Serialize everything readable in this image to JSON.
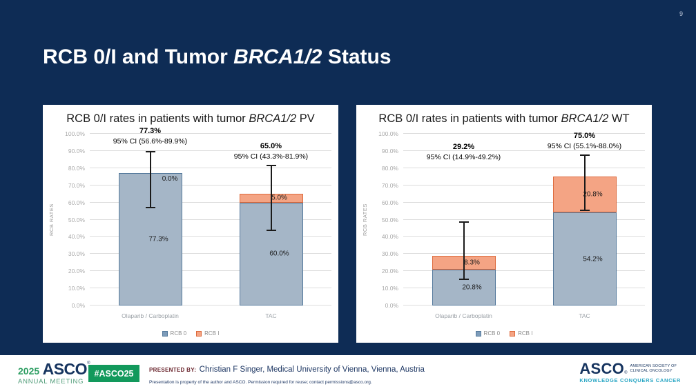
{
  "slide": {
    "page_number": "9",
    "title": {
      "prefix": "RCB 0/I and Tumor ",
      "italic": "BRCA1/2",
      "suffix": " Status"
    }
  },
  "charts": [
    {
      "title": {
        "prefix": "RCB 0/I rates in patients with tumor ",
        "italic": "BRCA1/2",
        "suffix": " PV"
      },
      "y_label": "RCB RATES",
      "y_ticks": [
        "100.0%",
        "90.0%",
        "80.0%",
        "70.0%",
        "60.0%",
        "50.0%",
        "40.0%",
        "30.0%",
        "20.0%",
        "10.0%",
        "0.0%"
      ],
      "legend": [
        {
          "label": "RCB 0"
        },
        {
          "label": "RCB I"
        }
      ],
      "bars": [
        {
          "category": "Olaparib / Carboplatin",
          "rcb0": 77.3,
          "rcb0_label": "77.3%",
          "rcb1": 0,
          "rcb1_label": "0.0%",
          "value_label": "77.3%",
          "ci_label": "95% CI (56.6%-89.9%)",
          "ci_low": 56.6,
          "ci_high": 89.9,
          "ann_bottom": 93
        },
        {
          "category": "TAC",
          "rcb0": 60.0,
          "rcb0_label": "60.0%",
          "rcb1": 5.0,
          "rcb1_label": "5.0%",
          "value_label": "65.0%",
          "ci_label": "95% CI (43.3%-81.9%)",
          "ci_low": 43.3,
          "ci_high": 81.9,
          "ann_bottom": 84.5
        }
      ]
    },
    {
      "title": {
        "prefix": "RCB 0/I rates in patients with tumor ",
        "italic": "BRCA1/2",
        "suffix": " WT"
      },
      "y_label": "RCB RATES",
      "y_ticks": [
        "100.0%",
        "90.0%",
        "80.0%",
        "70.0%",
        "60.0%",
        "50.0%",
        "40.0%",
        "30.0%",
        "20.0%",
        "10.0%",
        "0.0%"
      ],
      "legend": [
        {
          "label": "RCB 0"
        },
        {
          "label": "RCB I"
        }
      ],
      "bars": [
        {
          "category": "Olaparib / Carboplatin",
          "rcb0": 20.8,
          "rcb0_label": "20.8%",
          "rcb1": 8.3,
          "rcb1_label": "8.3%",
          "value_label": "29.2%",
          "ci_label": "95% CI (14.9%-49.2%)",
          "ci_low": 14.9,
          "ci_high": 49.2,
          "ann_bottom": 84
        },
        {
          "category": "TAC",
          "rcb0": 54.2,
          "rcb0_label": "54.2%",
          "rcb1": 20.8,
          "rcb1_label": "20.8%",
          "value_label": "75.0%",
          "ci_label": "95% CI (55.1%-88.0%)",
          "ci_low": 55.1,
          "ci_high": 88.0,
          "ann_bottom": 90.5
        }
      ]
    }
  ],
  "footer": {
    "meeting_logo": {
      "year": "2025",
      "org": "ASCO",
      "reg": "®",
      "sub": "ANNUAL MEETING"
    },
    "hashtag": "#ASCO25",
    "presented_by_label": "PRESENTED BY:",
    "presenter": "Christian F Singer, Medical University of Vienna, Vienna, Austria",
    "disclaimer": "Presentation is property of the author and ASCO. Permission required for reuse; contact permissions@asco.org.",
    "asco_logo": {
      "org": "ASCO",
      "reg": "®",
      "sub1": "AMERICAN SOCIETY OF",
      "sub2": "CLINICAL ONCOLOGY",
      "tagline": "KNOWLEDGE CONQUERS CANCER"
    }
  },
  "colors": {
    "slide_bg": "#0e2c55",
    "rcb0_fill": "#a5b6c7",
    "rcb0_border": "#54799c",
    "rcb1_fill": "#f4a484",
    "rcb1_border": "#dd6a3c",
    "gridline": "#dcdcdc",
    "error_bar": "#1a1a1a",
    "asco_green": "#12995c",
    "asco_navy": "#16345f",
    "asco_teal": "#29a6c4",
    "presented_maroon": "#68222a"
  },
  "chart_data": [
    {
      "type": "bar",
      "stacked": true,
      "title": "RCB 0/I rates in patients with tumor BRCA1/2 PV",
      "categories": [
        "Olaparib / Carboplatin",
        "TAC"
      ],
      "series": [
        {
          "name": "RCB 0",
          "values": [
            77.3,
            60.0
          ]
        },
        {
          "name": "RCB I",
          "values": [
            0.0,
            5.0
          ]
        }
      ],
      "totals": [
        77.3,
        65.0
      ],
      "total_annotations": [
        "77.3%",
        "65.0%"
      ],
      "ci_annotations": [
        "95% CI (56.6%-89.9%)",
        "95% CI (43.3%-81.9%)"
      ],
      "ci_95": [
        [
          56.6,
          89.9
        ],
        [
          43.3,
          81.9
        ]
      ],
      "xlabel": "",
      "ylabel": "RCB RATES",
      "ylim": [
        0,
        100
      ],
      "ytick_step": 10,
      "grid": true,
      "legend_position": "bottom"
    },
    {
      "type": "bar",
      "stacked": true,
      "title": "RCB 0/I rates in patients with tumor BRCA1/2 WT",
      "categories": [
        "Olaparib / Carboplatin",
        "TAC"
      ],
      "series": [
        {
          "name": "RCB 0",
          "values": [
            20.8,
            54.2
          ]
        },
        {
          "name": "RCB I",
          "values": [
            8.3,
            20.8
          ]
        }
      ],
      "totals": [
        29.2,
        75.0
      ],
      "total_annotations": [
        "29.2%",
        "75.0%"
      ],
      "ci_annotations": [
        "95% CI (14.9%-49.2%)",
        "95% CI (55.1%-88.0%)"
      ],
      "ci_95": [
        [
          14.9,
          49.2
        ],
        [
          55.1,
          88.0
        ]
      ],
      "xlabel": "",
      "ylabel": "RCB RATES",
      "ylim": [
        0,
        100
      ],
      "ytick_step": 10,
      "grid": true,
      "legend_position": "bottom"
    }
  ]
}
